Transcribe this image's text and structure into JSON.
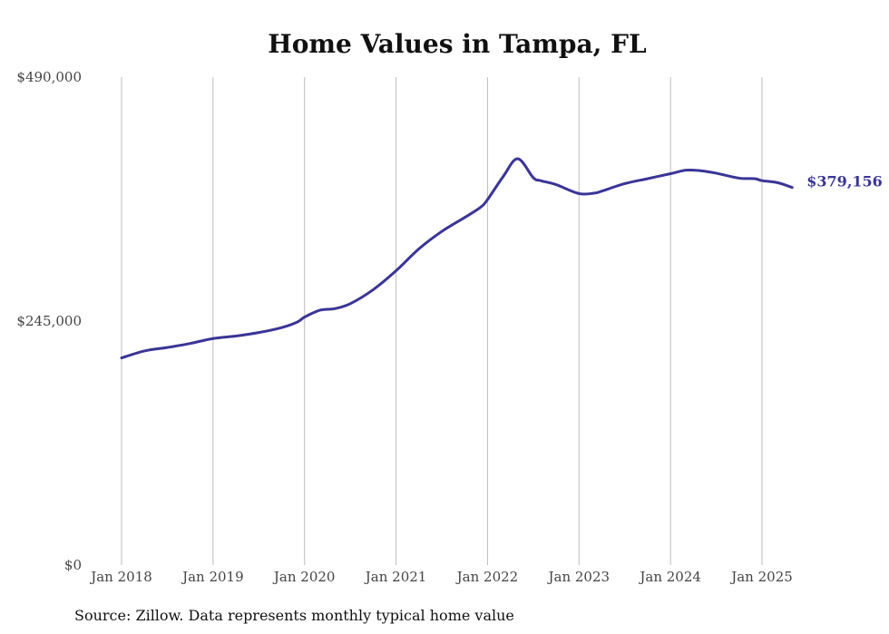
{
  "chart_data": {
    "type": "line",
    "title": "Home Values in Tampa, FL",
    "source": "Source: Zillow. Data represents monthly typical home value",
    "ylim": [
      0,
      490000
    ],
    "y_ticks": [
      {
        "value": 0,
        "label": "$0"
      },
      {
        "value": 245000,
        "label": "$245,000"
      },
      {
        "value": 490000,
        "label": "$490,000"
      }
    ],
    "x_ticks": [
      {
        "value": 2018.0,
        "label": "Jan 2018"
      },
      {
        "value": 2019.0,
        "label": "Jan 2019"
      },
      {
        "value": 2020.0,
        "label": "Jan 2020"
      },
      {
        "value": 2021.0,
        "label": "Jan 2021"
      },
      {
        "value": 2022.0,
        "label": "Jan 2022"
      },
      {
        "value": 2023.0,
        "label": "Jan 2023"
      },
      {
        "value": 2024.0,
        "label": "Jan 2024"
      },
      {
        "value": 2025.0,
        "label": "Jan 2025"
      }
    ],
    "grid": {
      "vertical": true,
      "horizontal": false
    },
    "line_color": "#3a3596",
    "end_label": "$379,156",
    "series": [
      {
        "x": [
          2018.0,
          2018.25,
          2018.5,
          2018.75,
          2019.0,
          2019.25,
          2019.5,
          2019.75,
          2019.92,
          2020.0,
          2020.17,
          2020.33,
          2020.5,
          2020.75,
          2021.0,
          2021.25,
          2021.5,
          2021.75,
          2021.92,
          2022.0,
          2022.17,
          2022.33,
          2022.5,
          2022.58,
          2022.75,
          2023.0,
          2023.17,
          2023.25,
          2023.5,
          2023.75,
          2024.0,
          2024.17,
          2024.33,
          2024.5,
          2024.75,
          2024.92,
          2025.0,
          2025.17,
          2025.33
        ],
        "values": [
          208000,
          215000,
          218500,
          222500,
          227500,
          230000,
          233500,
          238500,
          244000,
          249000,
          256000,
          257500,
          262500,
          276500,
          295500,
          317500,
          335000,
          349000,
          359000,
          367000,
          390000,
          408000,
          389000,
          386000,
          382000,
          373000,
          373500,
          375500,
          383000,
          388000,
          393000,
          396500,
          396000,
          393500,
          388500,
          388000,
          386000,
          384000,
          379156
        ]
      }
    ]
  }
}
